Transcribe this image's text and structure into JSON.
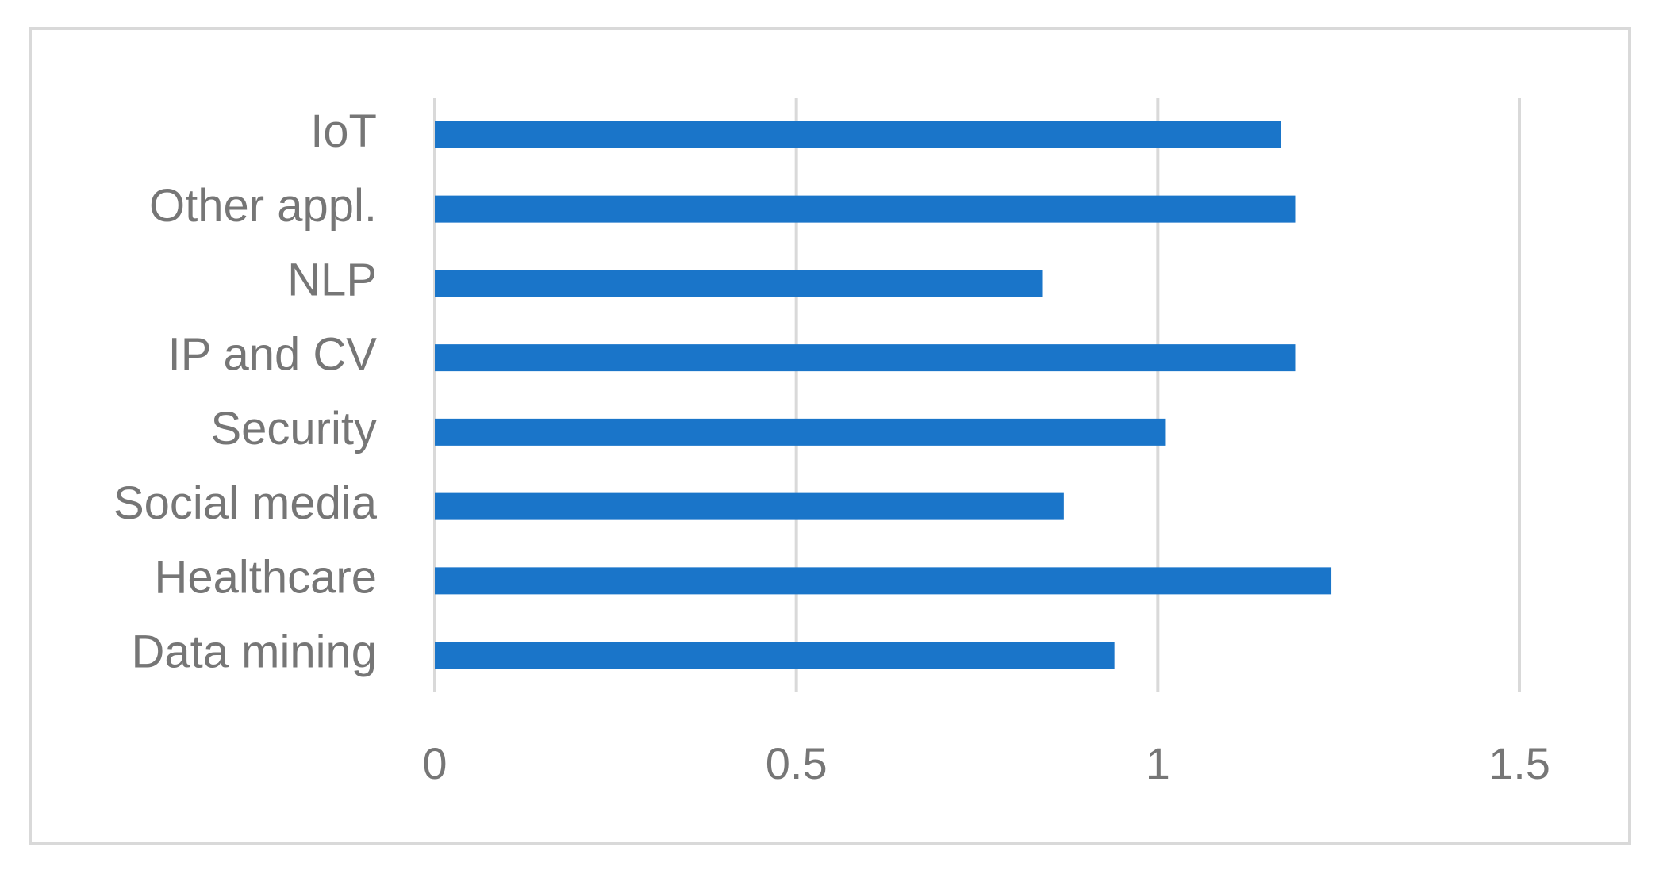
{
  "chart_data": {
    "type": "hbar",
    "categories": [
      "Data mining",
      "Healthcare",
      "Social media",
      "Security",
      "IP and CV",
      "NLP",
      "Other appl.",
      "IoT"
    ],
    "values": [
      0.94,
      1.24,
      0.87,
      1.01,
      1.19,
      0.84,
      1.19,
      1.17
    ],
    "color": "#1a75c9",
    "xlim": [
      0,
      1.5
    ],
    "xticks": [
      0,
      0.5,
      1,
      1.5
    ],
    "grid": true
  }
}
